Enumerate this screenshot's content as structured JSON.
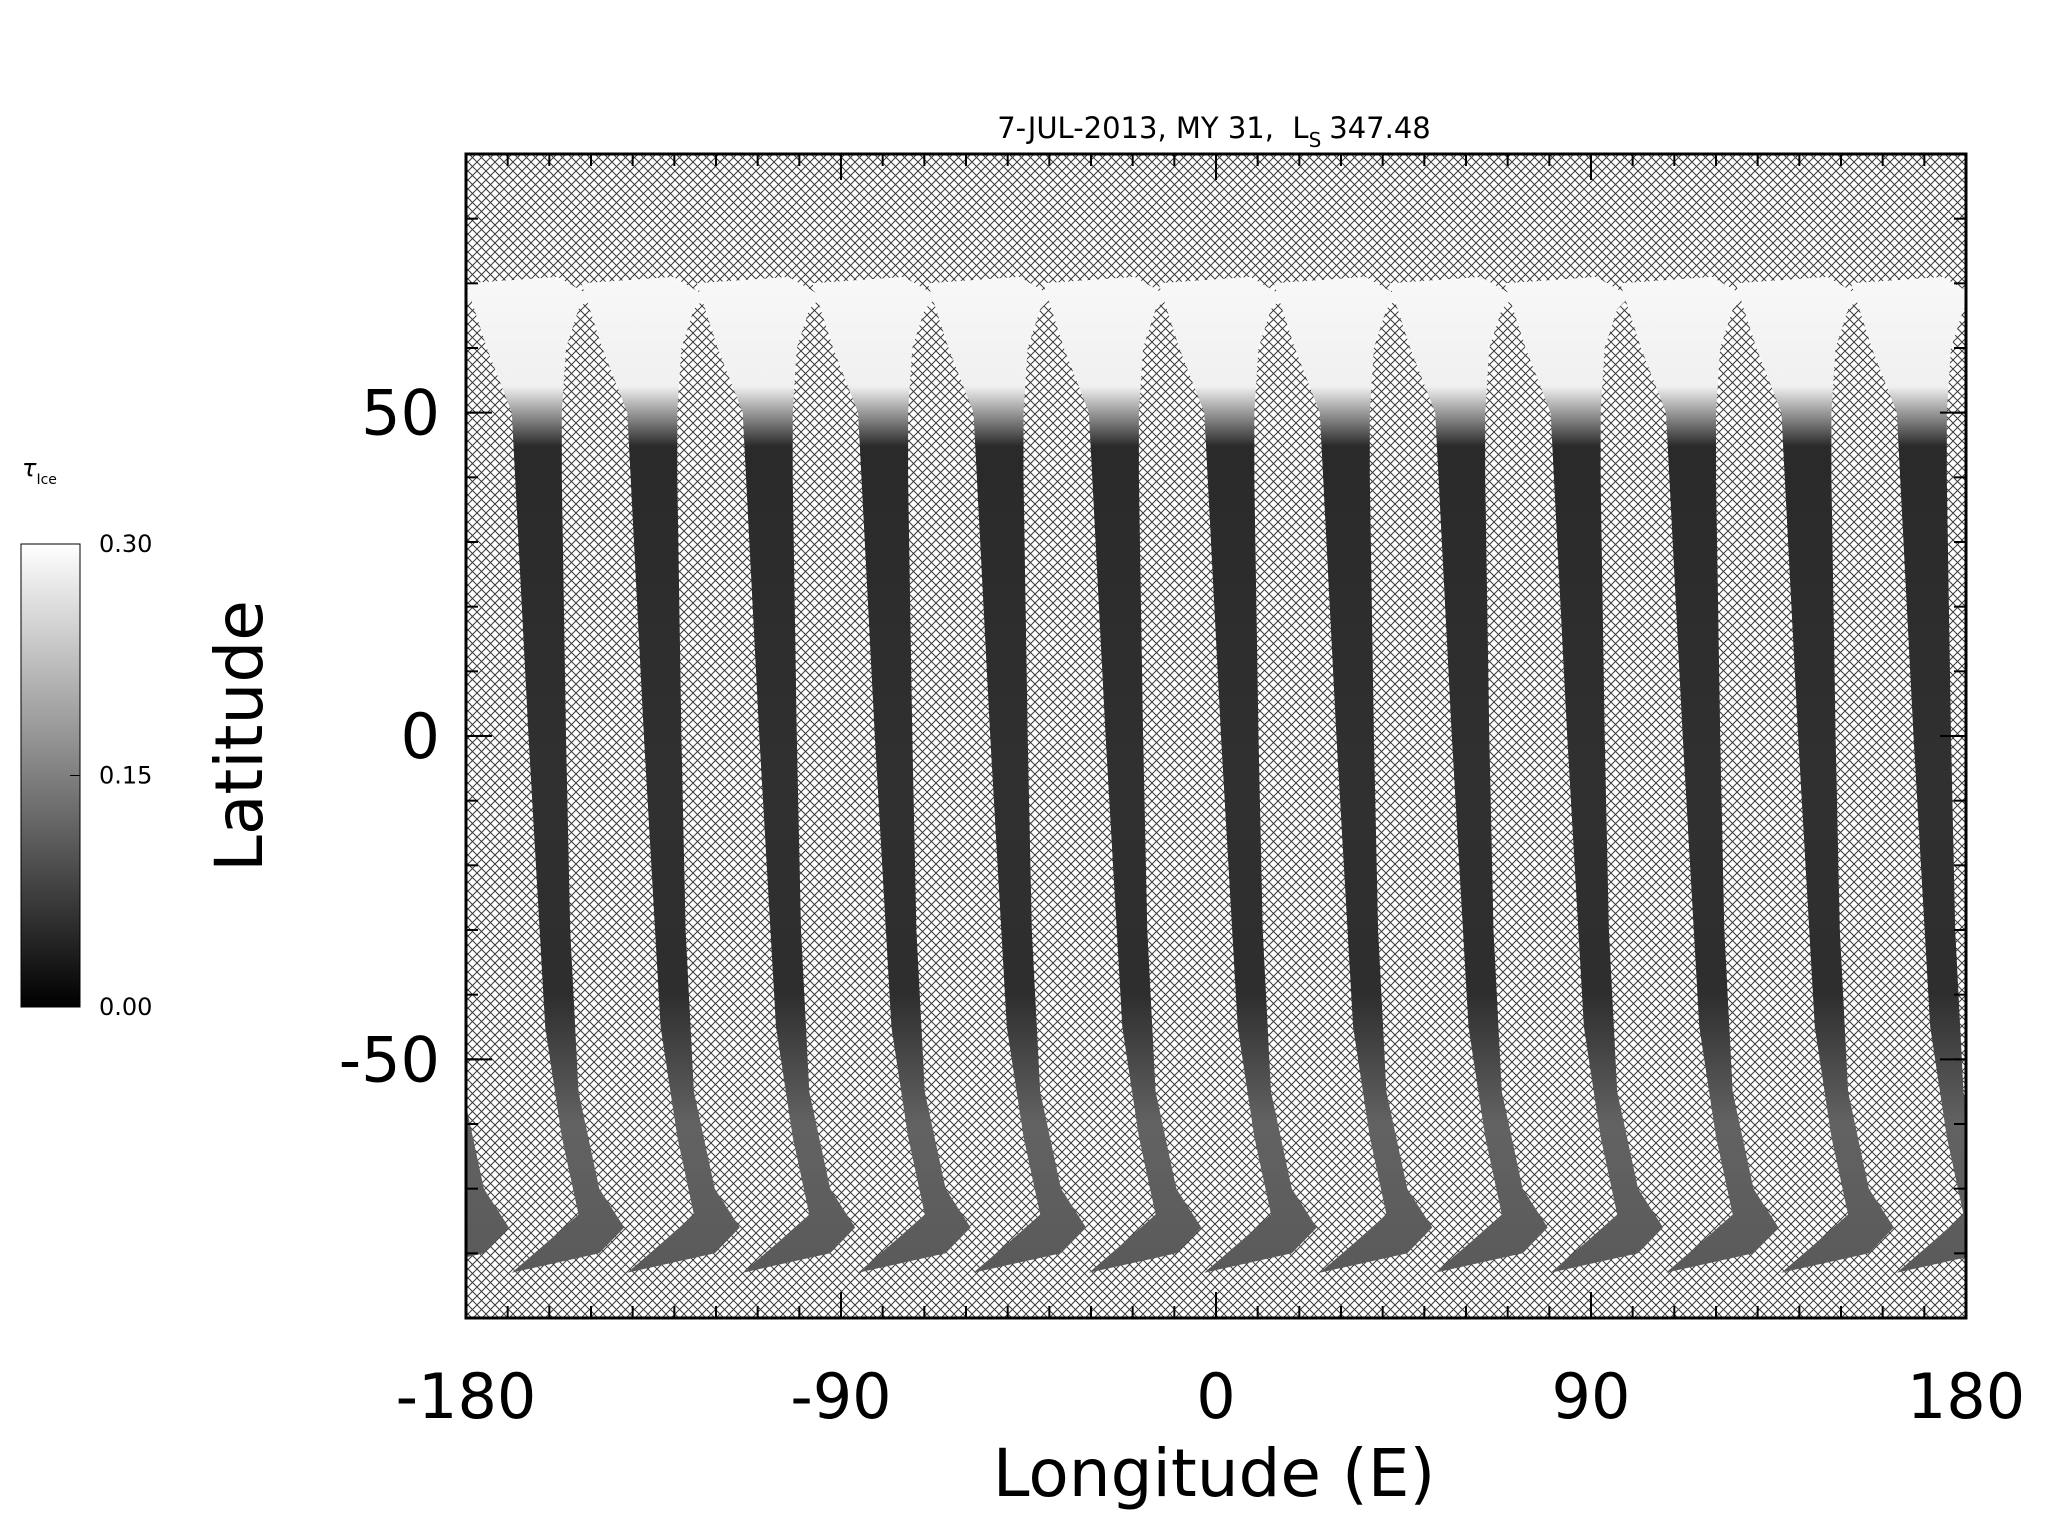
{
  "chart_data": {
    "type": "map",
    "title": "7-JUL-2013, MY 31,  L",
    "title_subscript": "S",
    "title_value": "347.48",
    "xlabel": "Longitude (E)",
    "ylabel": "Latitude",
    "xlim": [
      -180,
      180
    ],
    "ylim": [
      -90,
      90
    ],
    "xticks": [
      -180,
      -90,
      0,
      90,
      180
    ],
    "yticks": [
      -50,
      0,
      50
    ],
    "minor_tick_interval": 10,
    "colorbar": {
      "label": "τ",
      "label_subscript": "Ice",
      "lim": [
        0,
        0.3
      ],
      "ticks": [
        {
          "value": 0,
          "label": "0.00"
        },
        {
          "value": 0.15,
          "label": "0.15"
        },
        {
          "value": 0.3,
          "label": "0.30"
        }
      ]
    }
  }
}
